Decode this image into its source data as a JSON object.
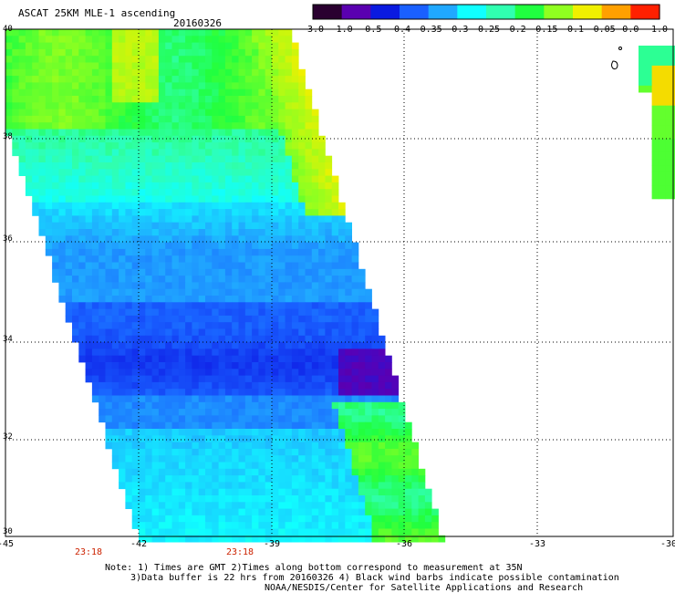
{
  "header": {
    "title": "ASCAT 25KM MLE-1 ascending",
    "date": "20160326"
  },
  "colorbar": {
    "labels": [
      "-3.0",
      "-1.0",
      "-0.5",
      "-0.4",
      "-0.35",
      "-0.3",
      "-0.25",
      "-0.2",
      "-0.15",
      "-0.1",
      "-0.05",
      "0.0",
      "1.0"
    ],
    "colors": [
      "#2a0030",
      "#5a00b0",
      "#0a1ae0",
      "#1a60ff",
      "#20a8ff",
      "#10ffff",
      "#30ffb0",
      "#20ff40",
      "#90ff20",
      "#f0f000",
      "#ffa000",
      "#ff2000"
    ]
  },
  "axes": {
    "x_ticks": [
      "-45",
      "-42",
      "-39",
      "-36",
      "-33",
      "-30"
    ],
    "y_ticks": [
      "30",
      "32",
      "34",
      "36",
      "38",
      "40"
    ],
    "x_range": [
      -45,
      -30
    ],
    "y_range": [
      30,
      40
    ]
  },
  "times": [
    "23:18",
    "23:18"
  ],
  "notes": {
    "line1": "Note: 1) Times are GMT 2)Times along bottom correspond to measurement at 35N",
    "line2": "3)Data buffer is 22 hrs from 20160326 4) Black wind barbs indicate possible contamination",
    "line3": "NOAA/NESDIS/Center for Satellite Applications and Research"
  }
}
